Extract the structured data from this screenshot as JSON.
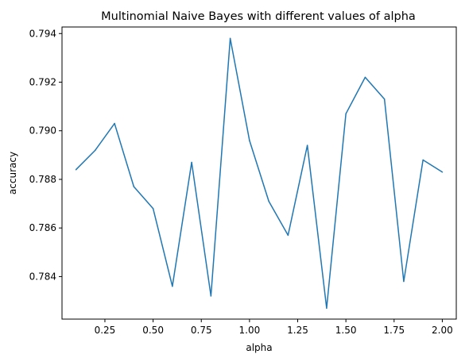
{
  "chart_data": {
    "type": "line",
    "title": "Multinomial Naive Bayes with different values of alpha",
    "xlabel": "alpha",
    "ylabel": "accuracy",
    "xlim": [
      0.0275,
      2.0725
    ],
    "ylim": [
      0.78225,
      0.79427
    ],
    "xticks": [
      0.25,
      0.5,
      0.75,
      1.0,
      1.25,
      1.5,
      1.75,
      2.0
    ],
    "xtick_labels": [
      "0.25",
      "0.50",
      "0.75",
      "1.00",
      "1.25",
      "1.50",
      "1.75",
      "2.00"
    ],
    "yticks": [
      0.784,
      0.786,
      0.788,
      0.79,
      0.792,
      0.794
    ],
    "ytick_labels": [
      "0.784",
      "0.786",
      "0.788",
      "0.790",
      "0.792",
      "0.794"
    ],
    "grid": false,
    "legend": "none",
    "line_color": "#1f77b4",
    "series": [
      {
        "x": [
          0.1,
          0.2,
          0.3,
          0.4,
          0.5,
          0.6,
          0.7,
          0.8,
          0.9,
          1.0,
          1.1,
          1.2,
          1.3,
          1.4,
          1.5,
          1.6,
          1.7,
          1.8,
          1.9,
          2.0
        ],
        "values": [
          0.7884,
          0.7892,
          0.7903,
          0.7877,
          0.7868,
          0.7836,
          0.7887,
          0.7832,
          0.7938,
          0.7896,
          0.7871,
          0.7857,
          0.7894,
          0.7827,
          0.7907,
          0.7922,
          0.7913,
          0.7838,
          0.7888,
          0.7883
        ]
      }
    ]
  }
}
